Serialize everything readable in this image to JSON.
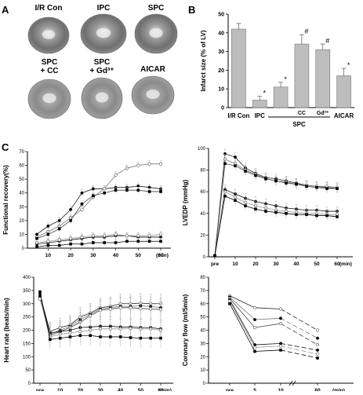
{
  "panels": {
    "A": {
      "letter": "A",
      "hearts": [
        {
          "label": "I/R Con"
        },
        {
          "label": "IPC"
        },
        {
          "label": "SPC"
        },
        {
          "label": "SPC\n+ CC"
        },
        {
          "label": "SPC\n+ Gd³⁺"
        },
        {
          "label": "AICAR"
        }
      ]
    },
    "B": {
      "letter": "B",
      "group_label": "SPC"
    },
    "C": {
      "letter": "C"
    }
  },
  "chart_data": [
    {
      "id": "infarct",
      "type": "bar",
      "ylabel": "Infarct size (% of LV)",
      "ylim": [
        0,
        50
      ],
      "yticks": [
        0,
        10,
        20,
        30,
        40,
        50
      ],
      "categories": [
        "I/R Con",
        "IPC",
        "",
        "CC",
        "Gd³⁺",
        "AICAR"
      ],
      "values": [
        42,
        4,
        11,
        34,
        31,
        17
      ],
      "errors": [
        3,
        2,
        2.5,
        5,
        3,
        4
      ],
      "significance": [
        "",
        "*",
        "*",
        "#",
        "#",
        "*"
      ],
      "bar_color": "#bdbdbd"
    },
    {
      "id": "functional",
      "type": "line",
      "ylabel": "Functional recovery(%)",
      "xlabel": "(min)",
      "ylim": [
        0,
        70
      ],
      "yticks": [
        0,
        10,
        20,
        30,
        40,
        50,
        60,
        70
      ],
      "x": [
        5,
        10,
        15,
        20,
        25,
        30,
        35,
        40,
        45,
        50,
        55,
        60
      ],
      "xticks": [
        10,
        20,
        30,
        40,
        50,
        60
      ],
      "series": [
        {
          "marker": "filled",
          "values": [
            10,
            16,
            20,
            28,
            40,
            43,
            43,
            44,
            44,
            45,
            44,
            43
          ]
        },
        {
          "marker": "open",
          "values": [
            8,
            12,
            16,
            22,
            28,
            37,
            43,
            53,
            58,
            60,
            61,
            61
          ]
        },
        {
          "marker": "filled-square",
          "values": [
            7,
            10,
            14,
            20,
            32,
            38,
            40,
            42,
            42,
            42,
            41,
            41
          ]
        },
        {
          "marker": "filled",
          "values": [
            3,
            4,
            5,
            6,
            7,
            8,
            8,
            9,
            9,
            8,
            8,
            8
          ]
        },
        {
          "marker": "open",
          "values": [
            4,
            5,
            6,
            7,
            8,
            9,
            9,
            10,
            9,
            9,
            9,
            10
          ]
        },
        {
          "marker": "filled-square",
          "values": [
            1,
            2,
            2,
            3,
            3,
            4,
            4,
            4,
            5,
            5,
            5,
            5
          ]
        }
      ]
    },
    {
      "id": "lvedp",
      "type": "line",
      "ylabel": "LVEDP (mmHg)",
      "xlabel": "(min)",
      "ylim": [
        0,
        100
      ],
      "yticks": [
        0,
        20,
        40,
        60,
        80,
        100
      ],
      "x": [
        0,
        5,
        10,
        15,
        20,
        25,
        30,
        35,
        40,
        45,
        50,
        55,
        60
      ],
      "xticklabels": [
        {
          "x": 0,
          "t": "pre"
        },
        {
          "x": 10,
          "t": "10"
        },
        {
          "x": 20,
          "t": "20"
        },
        {
          "x": 30,
          "t": "30"
        },
        {
          "x": 40,
          "t": "40"
        },
        {
          "x": 50,
          "t": "50"
        },
        {
          "x": 60,
          "t": "60"
        }
      ],
      "series": [
        {
          "marker": "filled",
          "values": [
            1,
            95,
            92,
            82,
            77,
            73,
            72,
            70,
            68,
            66,
            65,
            64,
            63
          ]
        },
        {
          "marker": "open",
          "values": [
            1,
            90,
            86,
            80,
            76,
            72,
            70,
            69,
            67,
            66,
            65,
            65,
            64
          ]
        },
        {
          "marker": "filled-square",
          "values": [
            1,
            86,
            84,
            79,
            75,
            72,
            70,
            68,
            67,
            65,
            64,
            63,
            63
          ]
        },
        {
          "marker": "filled",
          "values": [
            1,
            62,
            58,
            54,
            51,
            49,
            47,
            45,
            44,
            43,
            43,
            42,
            42
          ]
        },
        {
          "marker": "open",
          "values": [
            1,
            60,
            55,
            50,
            47,
            45,
            43,
            42,
            41,
            40,
            40,
            39,
            39
          ]
        },
        {
          "marker": "filled-square",
          "values": [
            1,
            56,
            52,
            47,
            44,
            42,
            41,
            40,
            39,
            39,
            38,
            38,
            37
          ]
        }
      ]
    },
    {
      "id": "heartrate",
      "type": "line",
      "ylabel": "Heart rate (beats/min)",
      "xlabel": "(min)",
      "ylim": [
        0,
        400
      ],
      "yticks": [
        0,
        50,
        100,
        150,
        200,
        250,
        300,
        350,
        400
      ],
      "x": [
        0,
        5,
        10,
        15,
        20,
        25,
        30,
        35,
        40,
        45,
        50,
        55,
        60
      ],
      "xticklabels": [
        {
          "x": 0,
          "t": "pre"
        },
        {
          "x": 10,
          "t": "10"
        },
        {
          "x": 20,
          "t": "20"
        },
        {
          "x": 30,
          "t": "30"
        },
        {
          "x": 40,
          "t": "40"
        },
        {
          "x": 50,
          "t": "50"
        },
        {
          "x": 60,
          "t": "60"
        }
      ],
      "series": [
        {
          "marker": "open",
          "values": [
            330,
            195,
            210,
            220,
            250,
            265,
            285,
            290,
            300,
            300,
            302,
            300,
            300
          ]
        },
        {
          "marker": "filled",
          "values": [
            325,
            185,
            200,
            215,
            240,
            260,
            280,
            285,
            290,
            290,
            292,
            290,
            285
          ]
        },
        {
          "marker": "open",
          "values": [
            320,
            180,
            195,
            210,
            230,
            255,
            275,
            280,
            285,
            285,
            282,
            280,
            278
          ]
        },
        {
          "marker": "filled",
          "values": [
            335,
            190,
            195,
            200,
            210,
            212,
            215,
            215,
            212,
            212,
            210,
            210,
            205
          ]
        },
        {
          "marker": "open",
          "values": [
            318,
            175,
            185,
            190,
            195,
            200,
            205,
            205,
            205,
            207,
            205,
            205,
            200
          ]
        },
        {
          "marker": "filled-square",
          "values": [
            345,
            165,
            170,
            175,
            180,
            180,
            175,
            175,
            175,
            172,
            170,
            170,
            170
          ]
        }
      ]
    },
    {
      "id": "coronary",
      "type": "line",
      "ylabel": "Coronary flow (ml/5min)",
      "xlabel": "(min)",
      "ylim": [
        0,
        80
      ],
      "yticks": [
        0,
        10,
        20,
        30,
        40,
        50,
        60,
        70,
        80
      ],
      "x": [
        0,
        5,
        10,
        60
      ],
      "xticklabels": [
        {
          "x": 0,
          "t": "pre"
        },
        {
          "x": 5,
          "t": "5"
        },
        {
          "x": 10,
          "t": "10"
        },
        {
          "x": 60,
          "t": "60"
        }
      ],
      "series": [
        {
          "marker": "open",
          "values": [
            66,
            57,
            56,
            40
          ]
        },
        {
          "marker": "filled",
          "values": [
            65,
            48,
            49,
            34
          ]
        },
        {
          "marker": "open",
          "values": [
            64,
            42,
            45,
            29
          ]
        },
        {
          "marker": "filled",
          "values": [
            63,
            29,
            30,
            25
          ]
        },
        {
          "marker": "open",
          "values": [
            62,
            27,
            28,
            22
          ]
        },
        {
          "marker": "filled-square",
          "values": [
            60,
            24,
            25,
            19
          ]
        }
      ]
    }
  ]
}
